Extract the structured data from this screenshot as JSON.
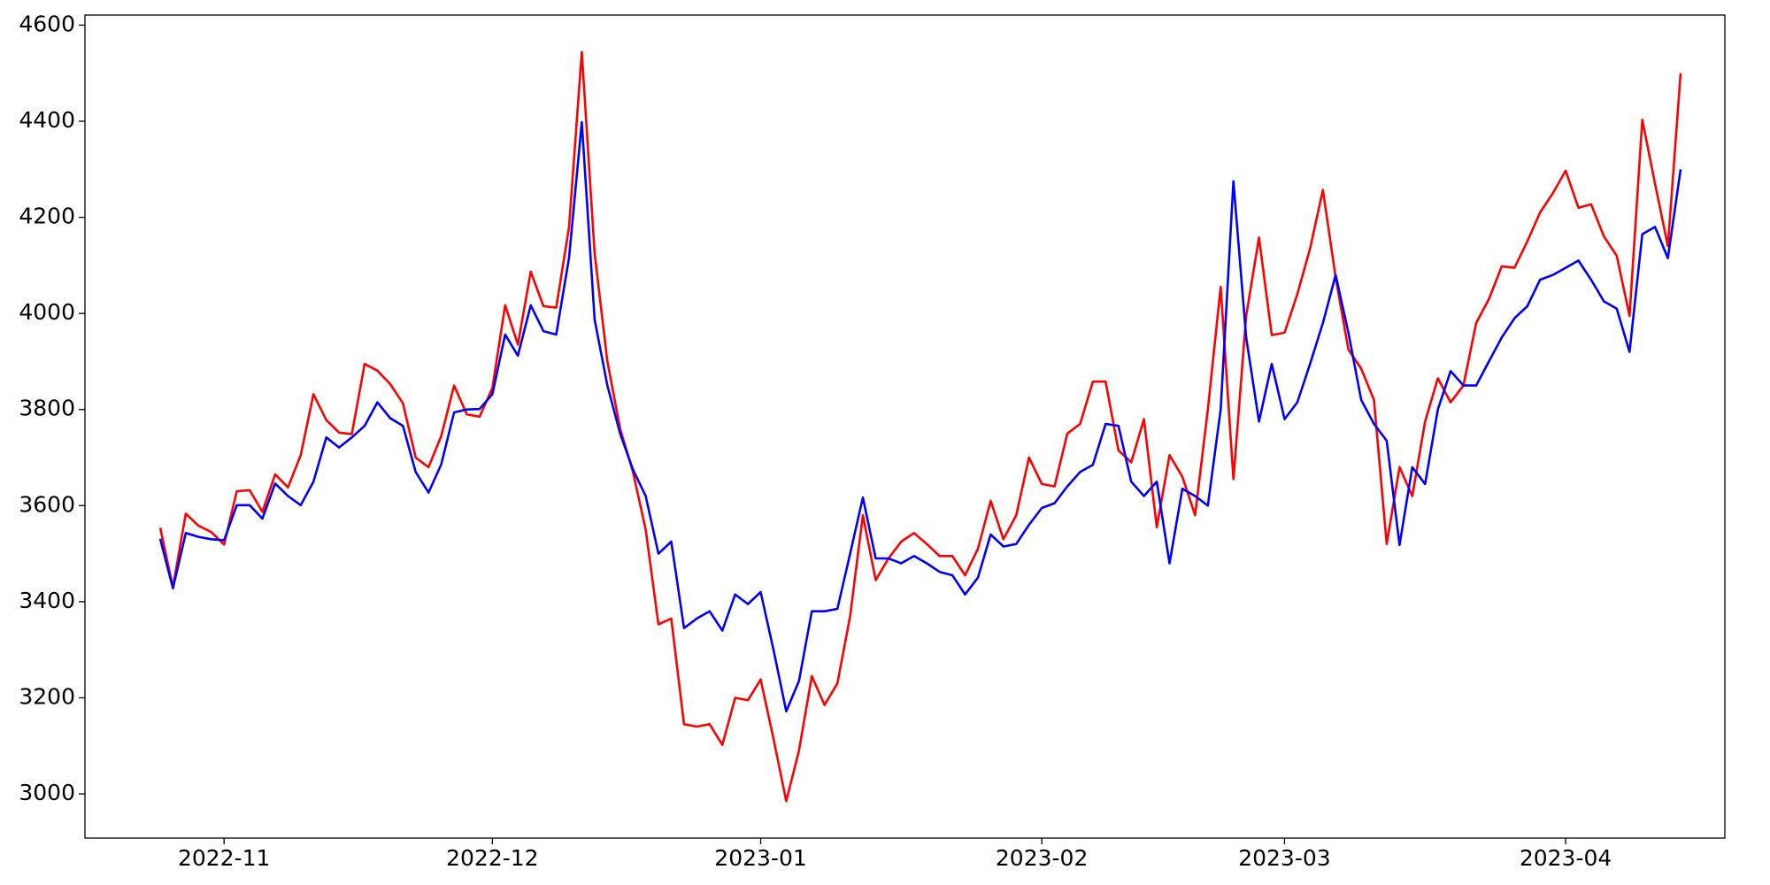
{
  "chart_data": {
    "type": "line",
    "categories": [
      null,
      null,
      null,
      null,
      null,
      "2022-11",
      null,
      null,
      null,
      null,
      null,
      null,
      null,
      null,
      null,
      null,
      null,
      null,
      null,
      null,
      null,
      null,
      null,
      null,
      null,
      null,
      "2022-12",
      null,
      null,
      null,
      null,
      null,
      null,
      null,
      null,
      null,
      null,
      null,
      null,
      null,
      null,
      null,
      null,
      null,
      null,
      null,
      null,
      "2023-01",
      null,
      null,
      null,
      null,
      null,
      null,
      null,
      null,
      null,
      null,
      null,
      null,
      null,
      null,
      null,
      null,
      null,
      null,
      null,
      null,
      null,
      "2023-02",
      null,
      null,
      null,
      null,
      null,
      null,
      null,
      null,
      null,
      null,
      null,
      null,
      null,
      null,
      null,
      null,
      null,
      null,
      "2023-03",
      null,
      null,
      null,
      null,
      null,
      null,
      null,
      null,
      null,
      null,
      null,
      null,
      null,
      null,
      null,
      null,
      null,
      null,
      null,
      null,
      null,
      "2023-04",
      null,
      null,
      null,
      null,
      null,
      null,
      null,
      null,
      null
    ],
    "series": [
      {
        "color": "#ff0000",
        "values": [
          3554,
          3430,
          3583,
          3558,
          3545,
          3519,
          3630,
          3632,
          3587,
          3665,
          3638,
          3705,
          3832,
          3778,
          3752,
          3749,
          3895,
          3881,
          3853,
          3813,
          3700,
          3680,
          3745,
          3850,
          3790,
          3785,
          3845,
          4017,
          3935,
          4087,
          4015,
          4012,
          4180,
          4544,
          4125,
          3900,
          3760,
          3670,
          3550,
          3353,
          3365,
          3145,
          3140,
          3145,
          3102,
          3200,
          3195,
          3238,
          3115,
          2985,
          3090,
          3245,
          3185,
          3230,
          3370,
          3580,
          3445,
          3490,
          3525,
          3543,
          3520,
          3495,
          3495,
          3455,
          3510,
          3610,
          3530,
          3580,
          3700,
          3645,
          3640,
          3750,
          3770,
          3858,
          3858,
          3715,
          3690,
          3780,
          3555,
          3705,
          3660,
          3580,
          3800,
          4055,
          3655,
          3995,
          4158,
          3955,
          3960,
          4040,
          4135,
          4257,
          4075,
          3925,
          3885,
          3820,
          3520,
          3680,
          3620,
          3775,
          3865,
          3815,
          3850,
          3980,
          4030,
          4098,
          4095,
          4150,
          4210,
          4250,
          4297,
          4220,
          4227,
          4160,
          4120,
          3995,
          4403,
          4270,
          4140,
          4500
        ]
      },
      {
        "color": "#0000ff",
        "values": [
          3531,
          3428,
          3543,
          3535,
          3530,
          3528,
          3601,
          3601,
          3573,
          3646,
          3620,
          3601,
          3650,
          3742,
          3721,
          3742,
          3766,
          3815,
          3782,
          3766,
          3670,
          3627,
          3686,
          3794,
          3800,
          3801,
          3832,
          3956,
          3912,
          4017,
          3963,
          3956,
          4116,
          4398,
          3987,
          3850,
          3750,
          3675,
          3620,
          3500,
          3525,
          3345,
          3365,
          3380,
          3340,
          3415,
          3395,
          3420,
          3300,
          3172,
          3235,
          3380,
          3380,
          3385,
          3500,
          3617,
          3490,
          3490,
          3480,
          3495,
          3480,
          3462,
          3455,
          3415,
          3450,
          3540,
          3515,
          3520,
          3560,
          3595,
          3605,
          3640,
          3670,
          3685,
          3770,
          3766,
          3650,
          3620,
          3650,
          3480,
          3635,
          3620,
          3600,
          3800,
          4275,
          3950,
          3775,
          3895,
          3780,
          3815,
          3895,
          3980,
          4080,
          3960,
          3820,
          3770,
          3735,
          3518,
          3680,
          3645,
          3800,
          3880,
          3850,
          3850,
          3900,
          3950,
          3990,
          4015,
          4070,
          4080,
          4095,
          4110,
          4070,
          4025,
          4010,
          3920,
          4165,
          4180,
          4115,
          4300
        ]
      }
    ],
    "ylim": [
      2908,
      4621
    ],
    "yticks": [
      3000,
      3200,
      3400,
      3600,
      3800,
      4000,
      4200,
      4400,
      4600
    ]
  }
}
